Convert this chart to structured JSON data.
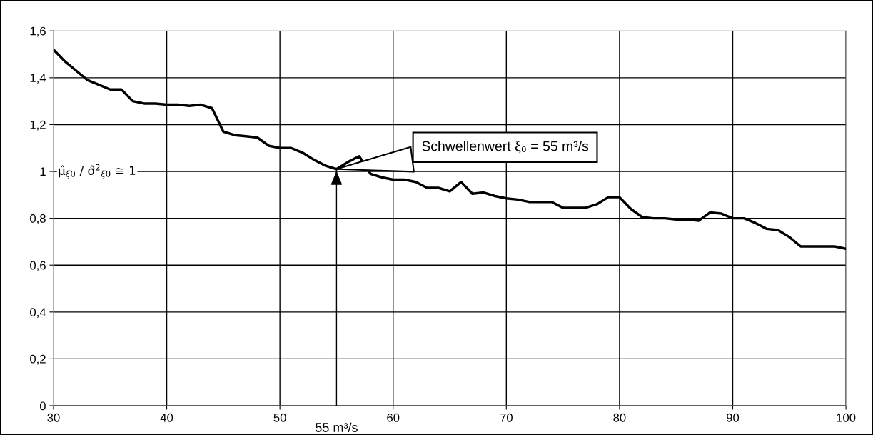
{
  "chart_data": {
    "type": "line",
    "x": [
      30,
      31,
      32,
      33,
      34,
      35,
      36,
      37,
      38,
      39,
      40,
      41,
      42,
      43,
      44,
      45,
      46,
      47,
      48,
      49,
      50,
      51,
      52,
      53,
      54,
      55,
      56,
      57,
      58,
      59,
      60,
      61,
      62,
      63,
      64,
      65,
      66,
      67,
      68,
      69,
      70,
      71,
      72,
      73,
      74,
      75,
      76,
      77,
      78,
      79,
      80,
      81,
      82,
      83,
      84,
      85,
      86,
      87,
      88,
      89,
      90,
      91,
      92,
      93,
      94,
      95,
      96,
      97,
      98,
      99,
      100
    ],
    "series": [
      {
        "color": "#000000",
        "values": [
          1.52,
          1.47,
          1.43,
          1.39,
          1.37,
          1.35,
          1.35,
          1.3,
          1.29,
          1.29,
          1.285,
          1.285,
          1.28,
          1.285,
          1.27,
          1.17,
          1.155,
          1.15,
          1.145,
          1.11,
          1.1,
          1.1,
          1.08,
          1.05,
          1.025,
          1.01,
          1.04,
          1.065,
          0.99,
          0.975,
          0.965,
          0.965,
          0.955,
          0.93,
          0.93,
          0.915,
          0.955,
          0.905,
          0.91,
          0.895,
          0.885,
          0.88,
          0.87,
          0.87,
          0.87,
          0.845,
          0.845,
          0.845,
          0.86,
          0.89,
          0.89,
          0.84,
          0.805,
          0.8,
          0.8,
          0.795,
          0.795,
          0.79,
          0.825,
          0.82,
          0.8,
          0.8,
          0.78,
          0.755,
          0.75,
          0.72,
          0.68,
          0.68,
          0.68,
          0.68,
          0.67
        ]
      }
    ],
    "xlim": [
      30,
      100
    ],
    "xticks": [
      30,
      40,
      50,
      60,
      70,
      80,
      90,
      100
    ],
    "ylim": [
      0,
      1.6
    ],
    "yticks": [
      0,
      {
        "value": 0.2,
        "label": "0,2"
      },
      {
        "value": 0.4,
        "label": "0,4"
      },
      {
        "value": 0.6,
        "label": "0,6"
      },
      {
        "value": 0.8,
        "label": "0,8"
      },
      1,
      {
        "value": 1.2,
        "label": "1,2"
      },
      {
        "value": 1.4,
        "label": "1,4"
      },
      {
        "value": 1.6,
        "label": "1,6"
      }
    ],
    "grid": true,
    "marker": "none",
    "line_style": "solid",
    "annotations": [
      {
        "text": "Schwellenwert ξ₀ = 55 m³/s",
        "x": 55,
        "y": 1.01
      },
      "μ̂$_{ξ0}$ / σ̂$^{2}$$_{ξ0}$ ≅ 1"
    ],
    "ref_lines": [
      {
        "axis": "x",
        "value": 55,
        "label": "55 m³/s"
      }
    ]
  }
}
